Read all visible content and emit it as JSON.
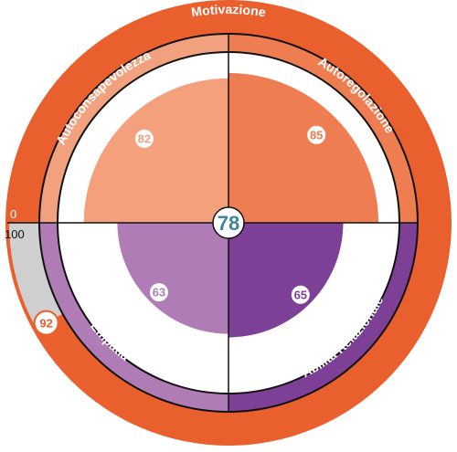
{
  "chart_data": {
    "type": "radial-quadrant",
    "title": "Motivazione",
    "outer_value": 92,
    "scale_min": "0",
    "scale_max": "100",
    "overall_value": 78,
    "categories": [
      "Autoconsapevolezza",
      "Autoregolazione",
      "Abilità Relazionale",
      "Empatia"
    ],
    "values": [
      82,
      85,
      65,
      63
    ],
    "value_max": 100
  },
  "colors": {
    "motivation": "#e95f2e",
    "motivation_track": "#cfcfcf",
    "autoconsapevolezza_fill": "#f4a07c",
    "autoconsapevolezza_band": "#f2a17e",
    "autoregolazione_fill": "#ef7d52",
    "autoregolazione_band": "#ef7d52",
    "abilita_fill": "#7e3f96",
    "abilita_band": "#7e3f96",
    "empatia_fill": "#b07cb6",
    "empatia_band": "#b07cb6",
    "center_text": "#3c84a0"
  }
}
